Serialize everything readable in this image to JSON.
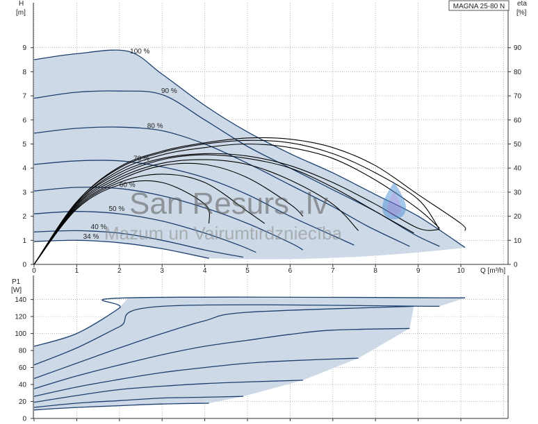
{
  "model_label": "MAGNA 25-80 N",
  "watermark": {
    "title": "San Resurs .lv",
    "subtitle": "Mazum un Vairumtirdzniecība"
  },
  "colors": {
    "curve": "#1c3f6e",
    "envelope_fill": "#cdd9e6",
    "efficiency": "#000000",
    "grid": "#888888",
    "drop": "#4a8fd6"
  },
  "chart_data": [
    {
      "type": "line",
      "title": "",
      "xlabel": "Q [m³/h]",
      "ylabel": "H",
      "ylabel_unit": "[m]",
      "y2label": "eta",
      "y2label_unit": "[%]",
      "xlim": [
        0,
        11
      ],
      "ylim": [
        0,
        10
      ],
      "y2lim": [
        0,
        100
      ],
      "x_ticks": [
        "0",
        "1",
        "2",
        "3",
        "4",
        "5",
        "6",
        "7",
        "8",
        "9",
        "10"
      ],
      "y_ticks": [
        "0",
        "1",
        "2",
        "3",
        "4",
        "5",
        "6",
        "7",
        "8",
        "9"
      ],
      "y2_ticks": [
        "0",
        "10",
        "20",
        "30",
        "40",
        "50",
        "60",
        "70",
        "80",
        "90"
      ],
      "grid": true,
      "head_curves": [
        {
          "name": "100 %",
          "points": [
            [
              0,
              8.5
            ],
            [
              1,
              8.75
            ],
            [
              2.2,
              8.85
            ],
            [
              3,
              7.9
            ],
            [
              4,
              6.6
            ],
            [
              5,
              5.5
            ],
            [
              6,
              4.6
            ],
            [
              7,
              3.8
            ],
            [
              8,
              2.9
            ],
            [
              9,
              2.0
            ],
            [
              10.1,
              0.7
            ]
          ]
        },
        {
          "name": "90 %",
          "points": [
            [
              0,
              6.9
            ],
            [
              1,
              7.15
            ],
            [
              2,
              7.2
            ],
            [
              3,
              7.05
            ],
            [
              4,
              6.0
            ],
            [
              5,
              4.9
            ],
            [
              6,
              4.0
            ],
            [
              7,
              3.1
            ],
            [
              8,
              2.2
            ],
            [
              8.9,
              1.25
            ],
            [
              9.5,
              0.75
            ]
          ]
        },
        {
          "name": "80 %",
          "points": [
            [
              0,
              5.45
            ],
            [
              1,
              5.65
            ],
            [
              2,
              5.7
            ],
            [
              3,
              5.55
            ],
            [
              4,
              5.0
            ],
            [
              5,
              4.2
            ],
            [
              6,
              3.3
            ],
            [
              7,
              2.4
            ],
            [
              7.8,
              1.6
            ],
            [
              8.8,
              0.75
            ]
          ]
        },
        {
          "name": "70 %",
          "points": [
            [
              0,
              4.15
            ],
            [
              1,
              4.3
            ],
            [
              2,
              4.3
            ],
            [
              3,
              4.05
            ],
            [
              4,
              3.6
            ],
            [
              5,
              2.9
            ],
            [
              6,
              2.0
            ],
            [
              7,
              1.2
            ],
            [
              7.5,
              0.8
            ]
          ]
        },
        {
          "name": "60 %",
          "points": [
            [
              0,
              3.05
            ],
            [
              1,
              3.2
            ],
            [
              2,
              3.15
            ],
            [
              3,
              2.85
            ],
            [
              4,
              2.35
            ],
            [
              5,
              1.7
            ],
            [
              6,
              0.9
            ],
            [
              6.3,
              0.6
            ]
          ]
        },
        {
          "name": "50 %",
          "points": [
            [
              0,
              2.1
            ],
            [
              1,
              2.2
            ],
            [
              2,
              2.1
            ],
            [
              3,
              1.8
            ],
            [
              4,
              1.3
            ],
            [
              4.8,
              0.8
            ],
            [
              5.2,
              0.5
            ]
          ]
        },
        {
          "name": "40 %",
          "points": [
            [
              0,
              1.35
            ],
            [
              1,
              1.4
            ],
            [
              2,
              1.3
            ],
            [
              3,
              1.0
            ],
            [
              4,
              0.6
            ],
            [
              4.9,
              0.3
            ]
          ]
        },
        {
          "name": "34 %",
          "points": [
            [
              0,
              0.95
            ],
            [
              1,
              1.0
            ],
            [
              2,
              0.9
            ],
            [
              3,
              0.65
            ],
            [
              4.1,
              0.25
            ]
          ]
        }
      ],
      "efficiency_curves": [
        {
          "points": [
            [
              0,
              0
            ],
            [
              1,
              2.55
            ],
            [
              2,
              3.8
            ],
            [
              3,
              4.4
            ],
            [
              4,
              4.6
            ],
            [
              5,
              4.5
            ],
            [
              6,
              4.1
            ],
            [
              7,
              3.4
            ],
            [
              8,
              2.5
            ],
            [
              9,
              1.5
            ],
            [
              9.5,
              1.45
            ]
          ]
        },
        {
          "points": [
            [
              0,
              0
            ],
            [
              1,
              2.5
            ],
            [
              2,
              3.7
            ],
            [
              3,
              4.35
            ],
            [
              4,
              4.55
            ],
            [
              5,
              4.4
            ],
            [
              6,
              4.0
            ],
            [
              7,
              3.2
            ],
            [
              8,
              2.2
            ],
            [
              8.9,
              1.3
            ]
          ]
        },
        {
          "points": [
            [
              0,
              0
            ],
            [
              1,
              2.45
            ],
            [
              2,
              3.6
            ],
            [
              3,
              4.2
            ],
            [
              4,
              4.35
            ],
            [
              5,
              4.15
            ],
            [
              6,
              3.5
            ],
            [
              7,
              2.5
            ],
            [
              7.6,
              1.4
            ]
          ]
        },
        {
          "points": [
            [
              0,
              0
            ],
            [
              1,
              2.4
            ],
            [
              2,
              3.5
            ],
            [
              3,
              4.1
            ],
            [
              4,
              4.15
            ],
            [
              5,
              3.6
            ],
            [
              6,
              2.5
            ],
            [
              6.3,
              2.0
            ]
          ]
        },
        {
          "points": [
            [
              0,
              0
            ],
            [
              1,
              2.35
            ],
            [
              2,
              3.4
            ],
            [
              3,
              3.75
            ],
            [
              4,
              3.4
            ],
            [
              5,
              2.2
            ],
            [
              5.4,
              1.7
            ]
          ]
        },
        {
          "points": [
            [
              0,
              0
            ],
            [
              1,
              2.3
            ],
            [
              2,
              3.3
            ],
            [
              3,
              3.4
            ],
            [
              4,
              2.5
            ],
            [
              4.1,
              1.7
            ]
          ]
        },
        {
          "points": [
            [
              0,
              0
            ],
            [
              1,
              2.55
            ],
            [
              2,
              3.9
            ],
            [
              3,
              4.55
            ],
            [
              4,
              4.85
            ],
            [
              5,
              5.0
            ],
            [
              6,
              4.85
            ],
            [
              7,
              4.4
            ],
            [
              8,
              3.5
            ],
            [
              9,
              2.3
            ],
            [
              9.5,
              1.5
            ]
          ]
        },
        {
          "points": [
            [
              0,
              0
            ],
            [
              1,
              2.6
            ],
            [
              2,
              4.0
            ],
            [
              3,
              4.65
            ],
            [
              4,
              5.0
            ],
            [
              5,
              5.15
            ],
            [
              6,
              5.05
            ],
            [
              7,
              4.6
            ],
            [
              8,
              3.8
            ],
            [
              9,
              2.7
            ],
            [
              9.5,
              1.45
            ]
          ]
        },
        {
          "points": [
            [
              0,
              0
            ],
            [
              1,
              2.6
            ],
            [
              2,
              4.05
            ],
            [
              3,
              4.7
            ],
            [
              4,
              5.05
            ],
            [
              5,
              5.25
            ],
            [
              6,
              5.2
            ],
            [
              7,
              4.85
            ],
            [
              8,
              4.1
            ],
            [
              9,
              2.9
            ],
            [
              10,
              1.7
            ],
            [
              10.1,
              1.4
            ]
          ]
        }
      ]
    },
    {
      "type": "line",
      "title": "",
      "xlabel": "",
      "ylabel": "P1",
      "ylabel_unit": "[W]",
      "xlim": [
        0,
        11
      ],
      "ylim": [
        0,
        150
      ],
      "y_ticks": [
        "0",
        "20",
        "40",
        "60",
        "80",
        "100",
        "120",
        "140"
      ],
      "grid": true,
      "power_curves": [
        {
          "points": [
            [
              0,
              85
            ],
            [
              1,
              100
            ],
            [
              2,
              130
            ],
            [
              2.2,
              142
            ],
            [
              10.1,
              142
            ]
          ]
        },
        {
          "points": [
            [
              0,
              63
            ],
            [
              1,
              83
            ],
            [
              2,
              108
            ],
            [
              3,
              132
            ],
            [
              9.5,
              132
            ]
          ]
        },
        {
          "points": [
            [
              0,
              47
            ],
            [
              1,
              65
            ],
            [
              2,
              83
            ],
            [
              3,
              100
            ],
            [
              4,
              115
            ],
            [
              5,
              125
            ],
            [
              8.9,
              132
            ]
          ]
        },
        {
          "points": [
            [
              0,
              35
            ],
            [
              1,
              50
            ],
            [
              2,
              63
            ],
            [
              3,
              75
            ],
            [
              4,
              85
            ],
            [
              5,
              92
            ],
            [
              6,
              99
            ],
            [
              7,
              104
            ],
            [
              8.8,
              106
            ]
          ]
        },
        {
          "points": [
            [
              0,
              26
            ],
            [
              1,
              37
            ],
            [
              2,
              46
            ],
            [
              3,
              54
            ],
            [
              4,
              60
            ],
            [
              5,
              65
            ],
            [
              6,
              68
            ],
            [
              7.6,
              71
            ]
          ]
        },
        {
          "points": [
            [
              0,
              19
            ],
            [
              1,
              27
            ],
            [
              2,
              34
            ],
            [
              3,
              38
            ],
            [
              4,
              41
            ],
            [
              5,
              43
            ],
            [
              6.3,
              45
            ]
          ]
        },
        {
          "points": [
            [
              0,
              13
            ],
            [
              1,
              18
            ],
            [
              2,
              21
            ],
            [
              3,
              24
            ],
            [
              4,
              25
            ],
            [
              4.9,
              26
            ]
          ]
        },
        {
          "points": [
            [
              0,
              10
            ],
            [
              1,
              13
            ],
            [
              2,
              15
            ],
            [
              3,
              17
            ],
            [
              4.1,
              18
            ]
          ]
        }
      ]
    }
  ]
}
